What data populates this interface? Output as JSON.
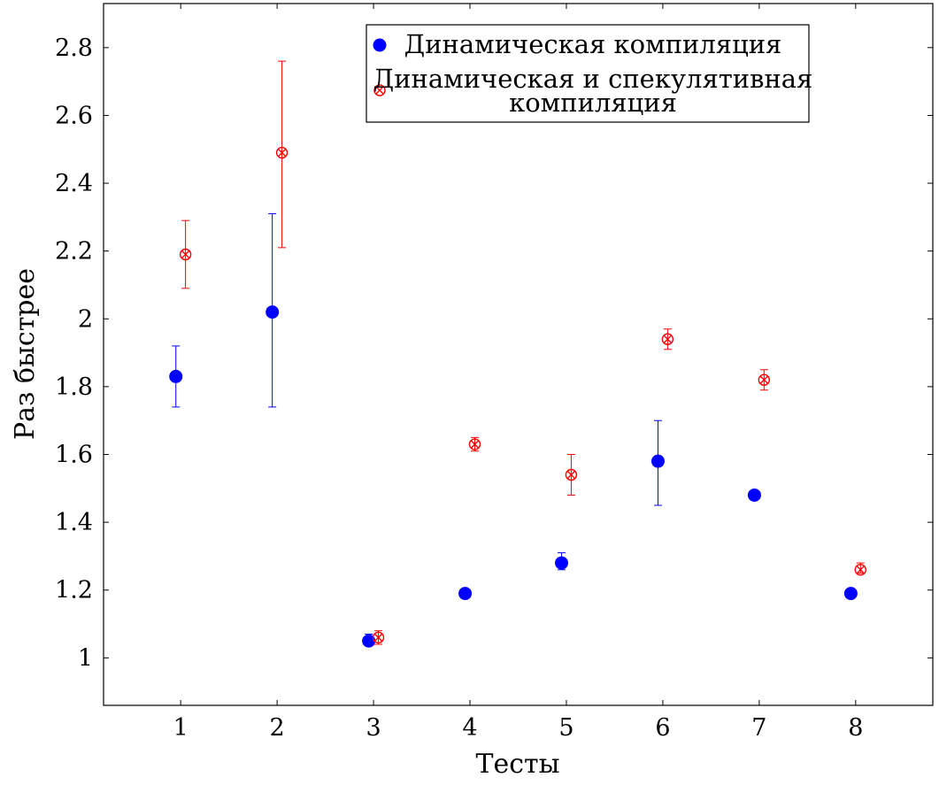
{
  "chart_data": {
    "type": "scatter",
    "xlabel": "Тесты",
    "ylabel": "Раз быстрее",
    "xlim": [
      0.2,
      8.8
    ],
    "ylim": [
      0.86,
      2.93
    ],
    "x_ticks": [
      1,
      2,
      3,
      4,
      5,
      6,
      7,
      8
    ],
    "x_tick_labels": [
      "1",
      "2",
      "3",
      "4",
      "5",
      "6",
      "7",
      "8"
    ],
    "y_ticks": [
      1,
      1.2,
      1.4,
      1.6,
      1.8,
      2,
      2.2,
      2.4,
      2.6,
      2.8
    ],
    "y_tick_labels": [
      "1",
      "1.2",
      "1.4",
      "1.6",
      "1.8",
      "2",
      "2.2",
      "2.4",
      "2.6",
      "2.8"
    ],
    "grid": false,
    "legend_position": "top-right",
    "series": [
      {
        "name": "Динамическая компиляция",
        "color": "#0000ff",
        "marker": "filled-circle",
        "x": [
          1,
          2,
          3,
          4,
          5,
          6,
          7,
          8
        ],
        "y": [
          1.83,
          2.02,
          1.05,
          1.19,
          1.28,
          1.58,
          1.48,
          1.19
        ],
        "y_err_low": [
          1.74,
          1.74,
          1.04,
          1.18,
          1.26,
          1.45,
          1.47,
          1.18
        ],
        "y_err_high": [
          1.92,
          2.31,
          1.07,
          1.2,
          1.31,
          1.7,
          1.49,
          1.2
        ]
      },
      {
        "name_lines": [
          "Динамическая и спекулятивная",
          "компиляция"
        ],
        "color": "#ff0000",
        "marker": "circle-x",
        "x": [
          1,
          2,
          3,
          4,
          5,
          6,
          7,
          8
        ],
        "y": [
          2.19,
          2.49,
          1.06,
          1.63,
          1.54,
          1.94,
          1.82,
          1.26
        ],
        "y_err_low": [
          2.09,
          2.21,
          1.04,
          1.61,
          1.48,
          1.91,
          1.79,
          1.25
        ],
        "y_err_high": [
          2.29,
          2.76,
          1.08,
          1.65,
          1.6,
          1.97,
          1.85,
          1.28
        ]
      }
    ]
  }
}
